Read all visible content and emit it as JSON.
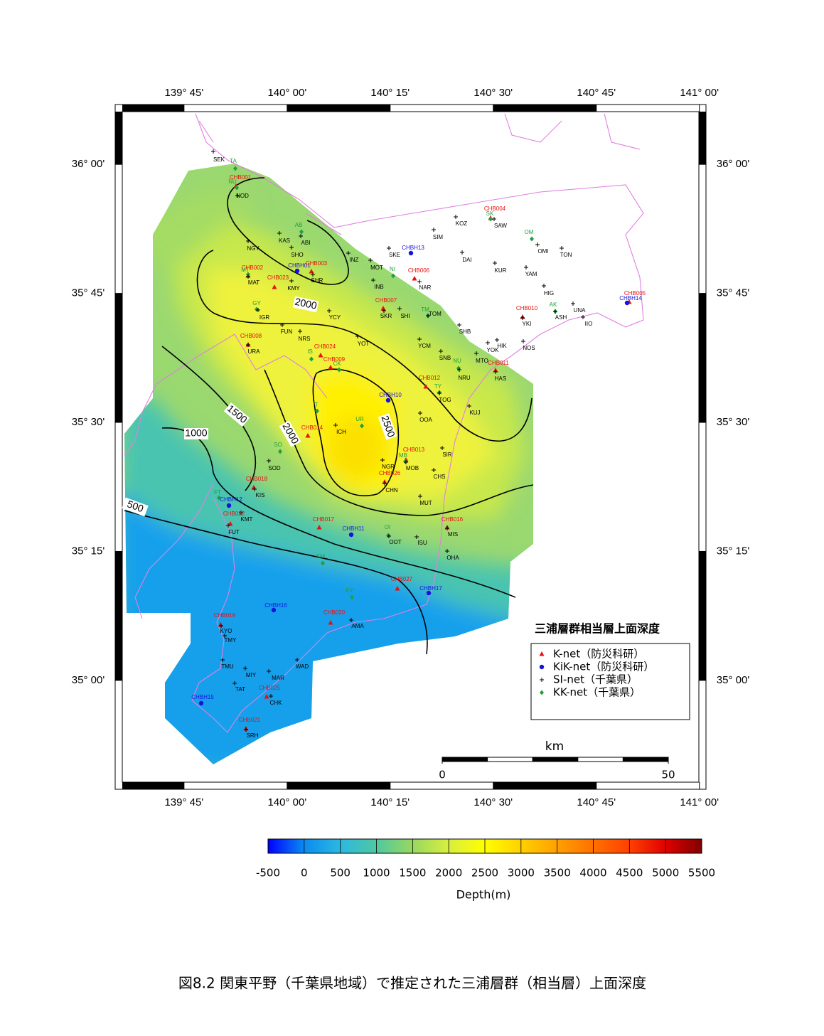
{
  "map": {
    "title": "三浦層群相当層上面深度",
    "xlim": [
      139.583,
      141.016
    ],
    "ylim": [
      34.789,
      36.116
    ],
    "xticks": [
      {
        "value": 139.75,
        "label": "139° 45'"
      },
      {
        "value": 140,
        "label": "140° 00'"
      },
      {
        "value": 140.25,
        "label": "140° 15'"
      },
      {
        "value": 140.5,
        "label": "140° 30'"
      },
      {
        "value": 140.75,
        "label": "140° 45'"
      },
      {
        "value": 141,
        "label": "141° 00'"
      }
    ],
    "yticks": [
      {
        "value": 35,
        "label": "35° 00'"
      },
      {
        "value": 35.25,
        "label": "35° 15'"
      },
      {
        "value": 35.5,
        "label": "35° 30'"
      },
      {
        "value": 35.75,
        "label": "35° 45'"
      },
      {
        "value": 36,
        "label": "36° 00'"
      }
    ],
    "contour_labels": [
      2000,
      1500,
      2000,
      2500,
      1000,
      500
    ],
    "stations": [
      "SEK",
      "TA",
      "CHB001",
      "NU",
      "NOD",
      "AB",
      "KAS",
      "ABI",
      "NGY",
      "SHO",
      "CHBH01",
      "CHB003",
      "SHR",
      "CHB002",
      "MT",
      "MAT",
      "CHB023",
      "KMY",
      "GY",
      "IGR",
      "CHB008",
      "URA",
      "FUN",
      "NRS",
      "CHB024",
      "IS",
      "CHB009",
      "CK",
      "YCY",
      "INZ",
      "SKE",
      "CHBH13",
      "MOT",
      "NI",
      "INB",
      "CHB006",
      "NAR",
      "CHB007",
      "SKR",
      "SHI",
      "TM",
      "TOM",
      "YOT",
      "SIM",
      "KOZ",
      "CHB004",
      "SK",
      "SAW",
      "DAI",
      "KUR",
      "OM",
      "OMI",
      "TON",
      "YAM",
      "HIG",
      "CHB010",
      "YKI",
      "AK",
      "ASH",
      "UNA",
      "IIO",
      "CHB005",
      "CHBH14",
      "SHB",
      "YCM",
      "SNB",
      "HIK",
      "YOK",
      "NOS",
      "NU",
      "NRU",
      "MTO",
      "CHB011",
      "HAS",
      "CHB012",
      "TY",
      "TOG",
      "CHBH10",
      "OOA",
      "KUJ",
      "IT",
      "ICH",
      "UR",
      "CHB014",
      "SO",
      "SOD",
      "SIR",
      "CHB013",
      "MB",
      "MOB",
      "NGR",
      "CHB026",
      "CHN",
      "CHS",
      "MUT",
      "CHB018",
      "KIS",
      "FT",
      "CHBH12",
      "KMT",
      "CHB022",
      "FUT",
      "CHB017",
      "CHBH11",
      "OI",
      "OOT",
      "ISU",
      "CHB016",
      "MIS",
      "OHA",
      "KM",
      "CHB027",
      "CHBH17",
      "KY",
      "CHBH16",
      "CHB019",
      "KYO",
      "TMY",
      "CHB020",
      "AMA",
      "TMU",
      "MIY",
      "MAR",
      "WAD",
      "TAT",
      "CHB025",
      "CHK",
      "CHBH15",
      "CHB021",
      "SRH"
    ],
    "legend": [
      {
        "label": "K-net（防災科研）",
        "color": "#e81010"
      },
      {
        "label": "KiK-net（防災科研）",
        "color": "#1414e0"
      },
      {
        "label": "SI-net（千葉県）",
        "color": "#000000"
      },
      {
        "label": "KK-net（千葉県）",
        "color": "#20a040"
      }
    ],
    "scale": {
      "unit": "km",
      "ticks": [
        0,
        50
      ]
    }
  },
  "colorbar": {
    "label": "Depth(m)",
    "lim": [
      -500,
      5500
    ],
    "ticks": [
      -500,
      0,
      500,
      1000,
      1500,
      2000,
      2500,
      3000,
      3500,
      4000,
      4500,
      5000,
      5500
    ],
    "colors": [
      "#0000ff",
      "#0a8cf0",
      "#2cb8e0",
      "#50c8a0",
      "#98d860",
      "#d8ee40",
      "#ffff00",
      "#ffd000",
      "#ffa000",
      "#ff7000",
      "#ff4000",
      "#e00000",
      "#800000"
    ]
  },
  "caption": "図8.2 関東平野（千葉県地域）で推定された三浦層群（相当層）上面深度"
}
